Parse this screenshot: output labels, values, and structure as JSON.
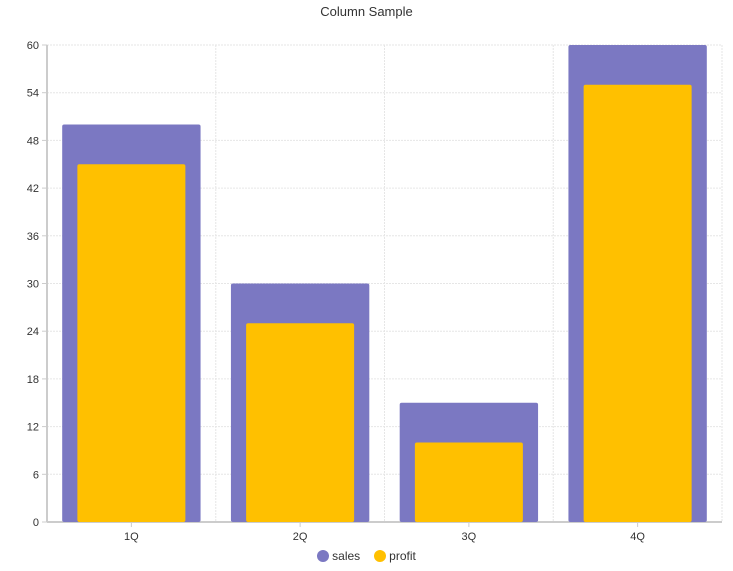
{
  "chart_data": {
    "type": "bar",
    "title": "Column Sample",
    "xlabel": "",
    "ylabel": "",
    "categories": [
      "1Q",
      "2Q",
      "3Q",
      "4Q"
    ],
    "series": [
      {
        "name": "sales",
        "values": [
          50,
          30,
          15,
          60
        ],
        "color": "#7b78c2"
      },
      {
        "name": "profit",
        "values": [
          45,
          25,
          10,
          55
        ],
        "color": "#ffc000"
      }
    ],
    "ylim": [
      0,
      60
    ],
    "yticks": [
      0,
      6,
      12,
      18,
      24,
      30,
      36,
      42,
      48,
      54,
      60
    ],
    "grid": true,
    "legend_position": "bottom"
  }
}
